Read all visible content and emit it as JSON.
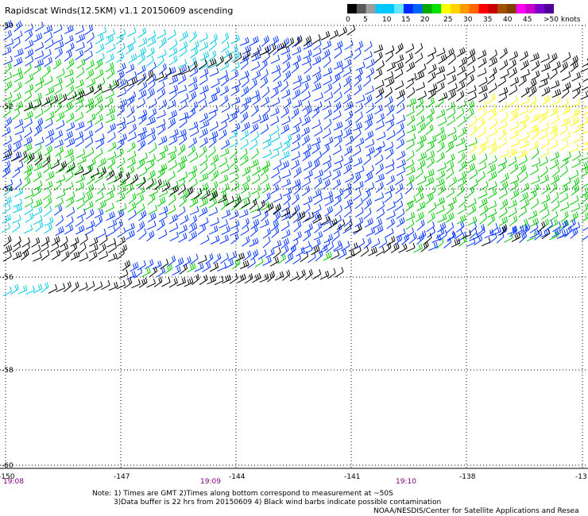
{
  "title": "Rapidscat Winds(12.5KM) v1.1 20150609 ascending",
  "colorbar": {
    "colors": [
      "#000000",
      "#5a5a5a",
      "#9e9e9e",
      "#00c8ff",
      "#00c8ff",
      "#64e6ff",
      "#0028ff",
      "#0064ff",
      "#00aa00",
      "#00e000",
      "#ffff00",
      "#ffd400",
      "#ff9900",
      "#ff6600",
      "#ff0000",
      "#c80000",
      "#a05000",
      "#804000",
      "#ff00ff",
      "#c800c8",
      "#7800c8",
      "#500096"
    ],
    "labels": [
      "0",
      "5",
      "10",
      "15",
      "20",
      "25",
      "30",
      "35",
      "40",
      "45",
      ">50 knots"
    ]
  },
  "lat_labels": [
    "-50",
    "-52",
    "-54",
    "-56",
    "-58",
    "-60"
  ],
  "lon_labels": [
    "-150",
    "-147",
    "-144",
    "-141",
    "-138",
    "-13"
  ],
  "time_labels": [
    "19:08",
    "19:09",
    "19:10"
  ],
  "notes": [
    "Note: 1) Times are GMT 2)Times along bottom correspond to measurement at ~50S",
    "3)Data buffer is 22 hrs from 20150609 4) Black wind barbs indicate possible contamination",
    "NOAA/NESDIS/Center for Satellite Applications and Resea"
  ],
  "colors": {
    "black": "#000000",
    "lightblue": "#00c8e6",
    "blue": "#0032ff",
    "green": "#00c800",
    "yellow": "#ffff00"
  }
}
